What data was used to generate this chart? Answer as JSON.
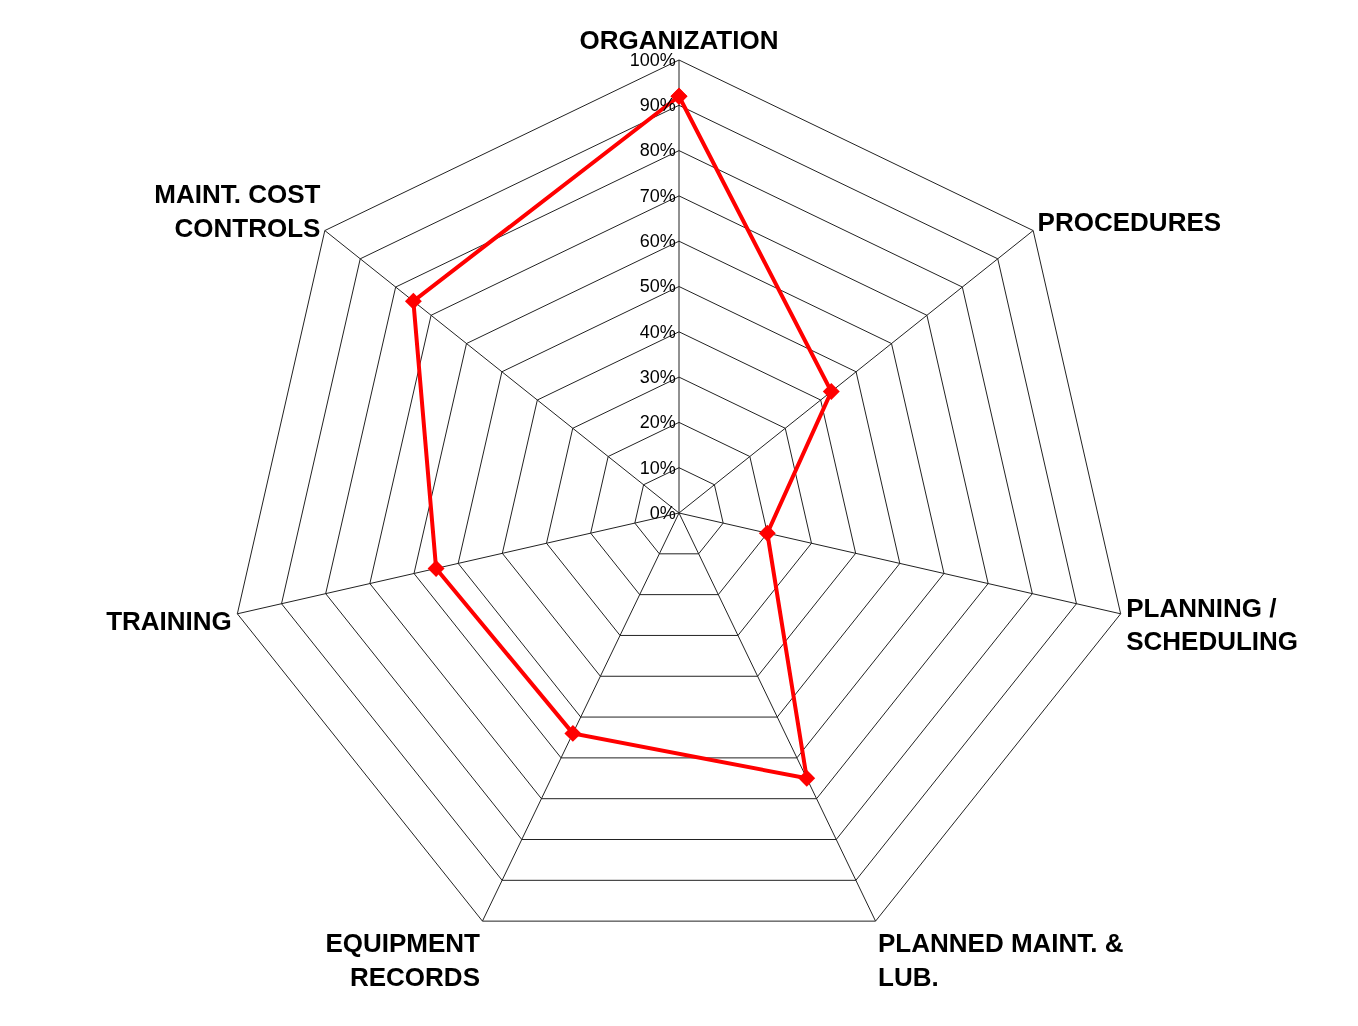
{
  "chart_data": {
    "type": "radar",
    "categories": [
      "ORGANIZATION",
      "PROCEDURES",
      "PLANNING /\nSCHEDULING",
      "PLANNED MAINT. &\nLUB.",
      "EQUIPMENT\nRECORDS",
      "TRAINING",
      "MAINT. COST\nCONTROLS"
    ],
    "series": [
      {
        "color": "#ff0000",
        "values": [
          92,
          43,
          20,
          65,
          54,
          55,
          75
        ]
      }
    ],
    "ylim": [
      0,
      100
    ],
    "yticks": [
      {
        "value": 0,
        "label": "0%"
      },
      {
        "value": 10,
        "label": "10%"
      },
      {
        "value": 20,
        "label": "20%"
      },
      {
        "value": 30,
        "label": "30%"
      },
      {
        "value": 40,
        "label": "40%"
      },
      {
        "value": 50,
        "label": "50%"
      },
      {
        "value": 60,
        "label": "60%"
      },
      {
        "value": 70,
        "label": "70%"
      },
      {
        "value": 80,
        "label": "80%"
      },
      {
        "value": 90,
        "label": "90%"
      },
      {
        "value": 100,
        "label": "100%"
      }
    ],
    "grid": true,
    "marker": "diamond",
    "line_style": "solid"
  }
}
